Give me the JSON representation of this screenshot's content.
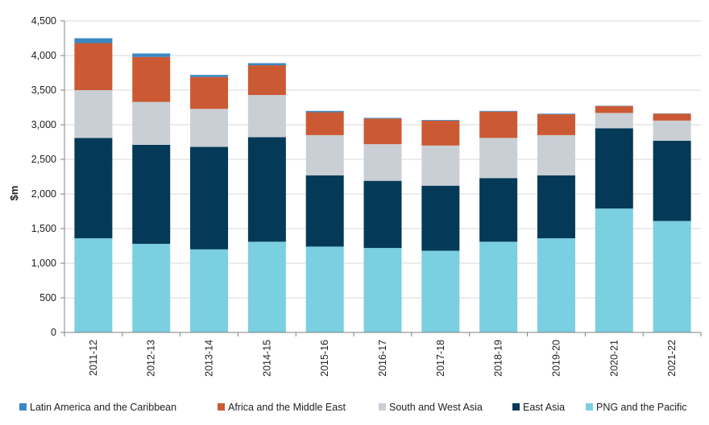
{
  "chart_data": {
    "type": "bar",
    "stacked": true,
    "title": "",
    "xlabel": "",
    "ylabel": "$m",
    "ylim": [
      0,
      4500
    ],
    "yticks": [
      0,
      500,
      1000,
      1500,
      2000,
      2500,
      3000,
      3500,
      4000,
      4500
    ],
    "ytick_labels": [
      "0",
      "500",
      "1,000",
      "1,500",
      "2,000",
      "2,500",
      "3,000",
      "3,500",
      "4,000",
      "4,500"
    ],
    "grid": true,
    "legend_position": "bottom",
    "categories": [
      "2011-12",
      "2012-13",
      "2013-14",
      "2014-15",
      "2015-16",
      "2016-17",
      "2017-18",
      "2018-19",
      "2019-20",
      "2020-21",
      "2021-22"
    ],
    "series": [
      {
        "name": "PNG and the Pacific",
        "color": "#7acfe1",
        "values": [
          1360,
          1280,
          1200,
          1310,
          1240,
          1220,
          1180,
          1310,
          1360,
          1790,
          1610
        ]
      },
      {
        "name": "East Asia",
        "color": "#043a58",
        "values": [
          1450,
          1430,
          1480,
          1510,
          1030,
          970,
          940,
          920,
          910,
          1160,
          1160
        ]
      },
      {
        "name": "South and West Asia",
        "color": "#c9cfd5",
        "values": [
          690,
          620,
          550,
          610,
          580,
          530,
          580,
          580,
          580,
          220,
          290
        ]
      },
      {
        "name": "Africa and the Middle East",
        "color": "#cb5a34",
        "values": [
          680,
          650,
          460,
          430,
          330,
          370,
          360,
          380,
          300,
          100,
          100
        ]
      },
      {
        "name": "Latin America and the Caribbean",
        "color": "#3a87c4",
        "values": [
          70,
          50,
          30,
          30,
          20,
          10,
          10,
          10,
          10,
          5,
          5
        ]
      }
    ],
    "legend_order": [
      "Latin America and the Caribbean",
      "Africa and the Middle East",
      "South and West Asia",
      "East Asia",
      "PNG and the Pacific"
    ]
  }
}
